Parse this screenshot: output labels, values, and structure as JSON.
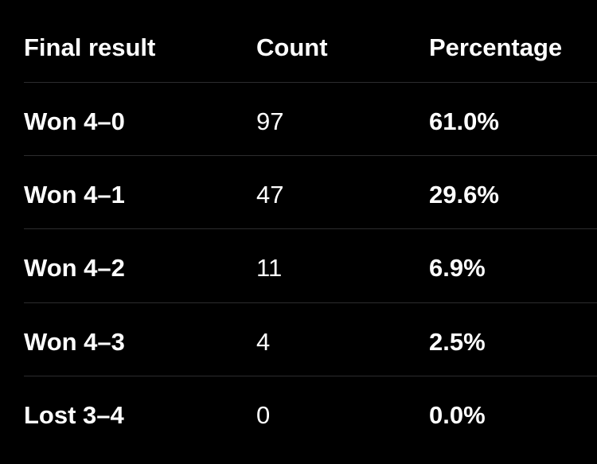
{
  "table": {
    "header": [
      "Final result",
      "Count",
      "Percentage"
    ],
    "rows": [
      [
        "Won 4–0",
        "97",
        "61.0%"
      ],
      [
        "Won 4–1",
        "47",
        "29.6%"
      ],
      [
        "Won 4–2",
        "11",
        "6.9%"
      ],
      [
        "Won 4–3",
        "4",
        "2.5%"
      ],
      [
        "Lost 3–4",
        "0",
        "0.0%"
      ]
    ]
  }
}
